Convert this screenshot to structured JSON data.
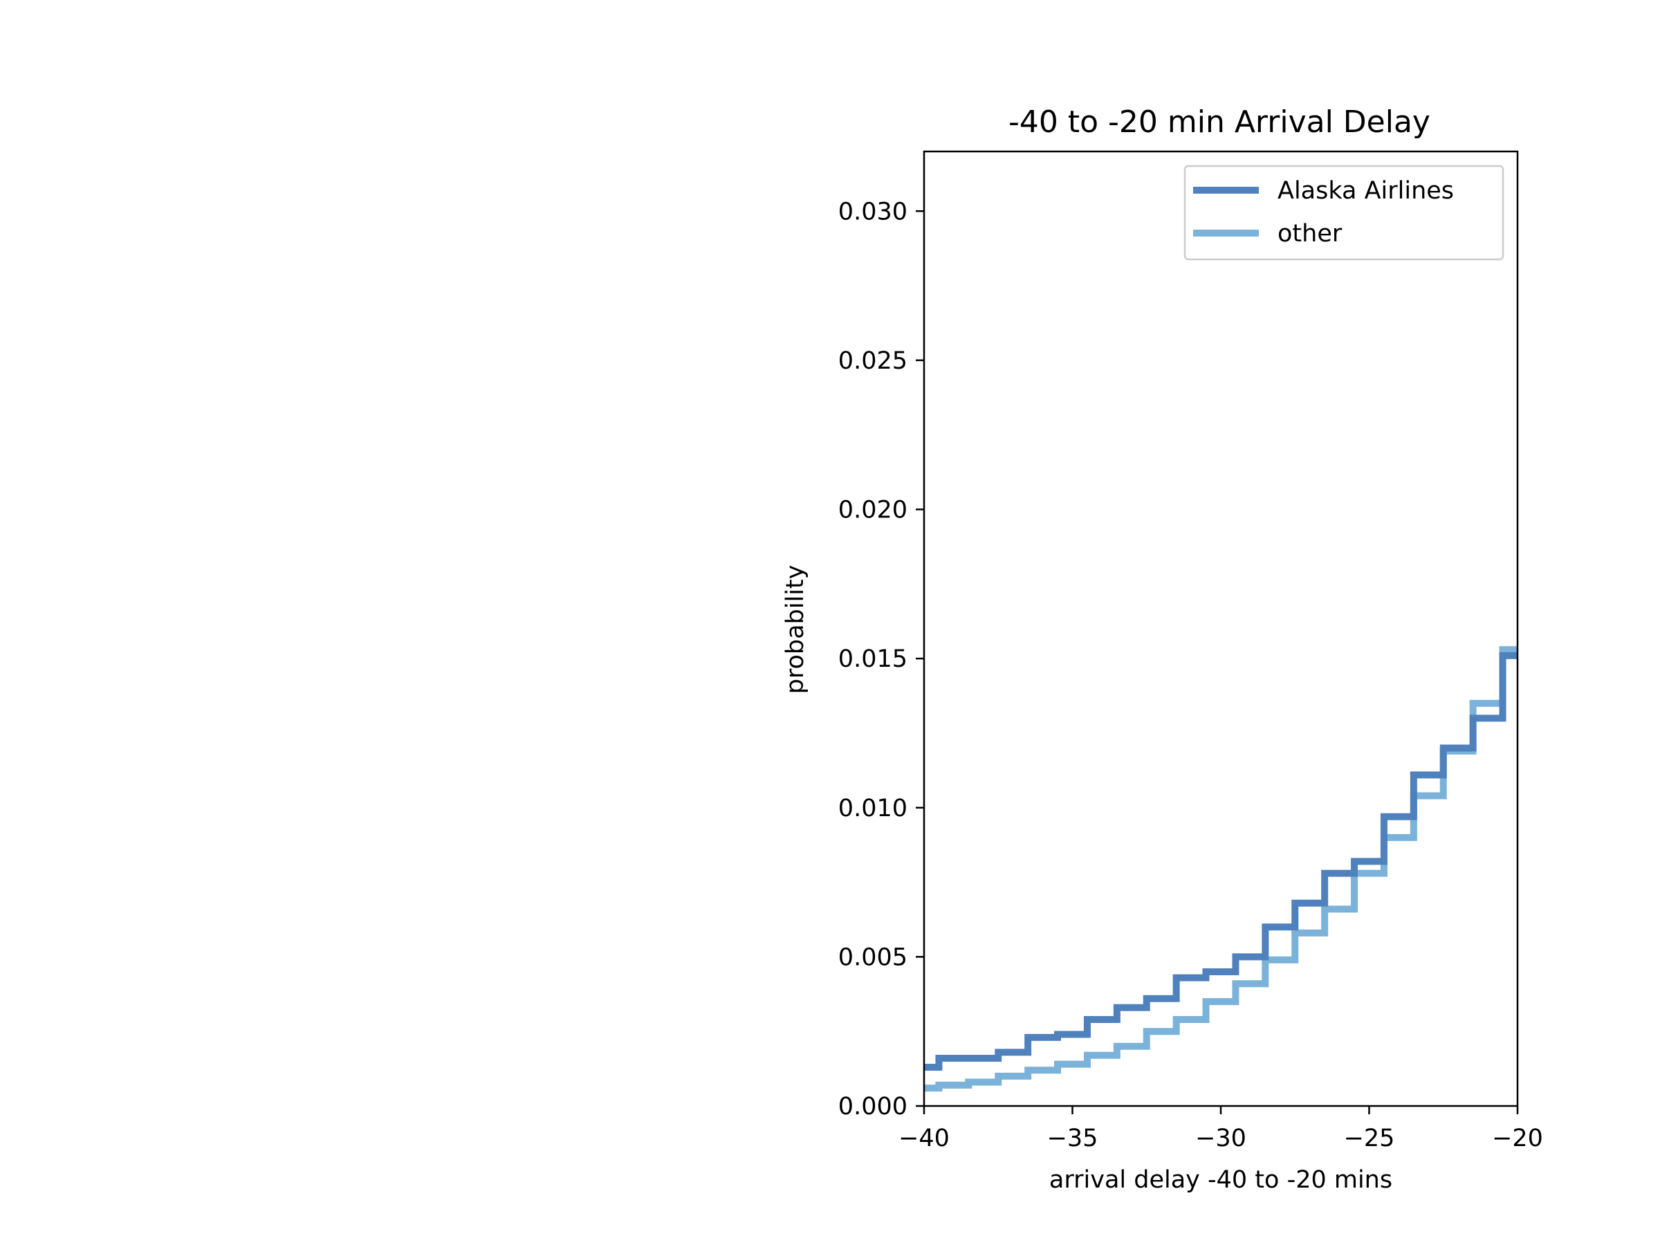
{
  "chart_data": {
    "type": "line",
    "title": "-40 to -20 min Arrival Delay",
    "xlabel": "arrival delay -40 to -20 mins",
    "ylabel": "probability",
    "xlim": [
      -40,
      -20
    ],
    "ylim": [
      0,
      0.032
    ],
    "x_ticks": [
      -40,
      -35,
      -30,
      -25,
      -20
    ],
    "x_tick_labels": [
      "−40",
      "−35",
      "−30",
      "−25",
      "−20"
    ],
    "y_ticks": [
      0,
      0.005,
      0.01,
      0.015,
      0.02,
      0.025,
      0.03
    ],
    "y_tick_labels": [
      "0.000",
      "0.005",
      "0.010",
      "0.015",
      "0.020",
      "0.025",
      "0.030"
    ],
    "grid": false,
    "legend_position": "upper right",
    "bin_edges": [
      -40,
      -39.5,
      -38.5,
      -37.5,
      -36.5,
      -35.5,
      -34.5,
      -33.5,
      -32.5,
      -31.5,
      -30.5,
      -29.5,
      -28.5,
      -27.5,
      -26.5,
      -25.5,
      -24.5,
      -23.5,
      -22.5,
      -21.5,
      -20.5,
      -20
    ],
    "series": [
      {
        "name": "Alaska Airlines",
        "color": "#4f81bd",
        "values": [
          0.0013,
          0.0016,
          0.0016,
          0.0018,
          0.0023,
          0.0024,
          0.0029,
          0.0033,
          0.0036,
          0.0043,
          0.0045,
          0.005,
          0.006,
          0.0068,
          0.0078,
          0.0082,
          0.0097,
          0.0111,
          0.012,
          0.013,
          0.0151
        ]
      },
      {
        "name": "other",
        "color": "#7ab2d9",
        "values": [
          0.0006,
          0.0007,
          0.0008,
          0.001,
          0.0012,
          0.0014,
          0.0017,
          0.002,
          0.0025,
          0.0029,
          0.0035,
          0.0041,
          0.0049,
          0.0058,
          0.0066,
          0.0078,
          0.009,
          0.0104,
          0.0119,
          0.0135,
          0.0153
        ]
      }
    ]
  }
}
